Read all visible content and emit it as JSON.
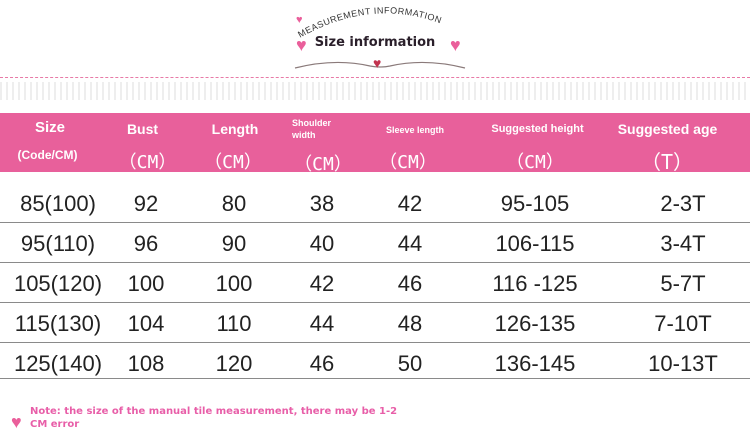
{
  "header": {
    "arc_text": "MEASUREMENT INFORMATION",
    "title": "Size information"
  },
  "table": {
    "columns": [
      {
        "label": "Size",
        "unit": "(Code/CM)"
      },
      {
        "label": "Bust",
        "unit": "（CM）"
      },
      {
        "label": "Length",
        "unit": "（CM）"
      },
      {
        "label": "Shoulder width",
        "unit": "（CM）"
      },
      {
        "label": "Sleeve length",
        "unit": "（CM）"
      },
      {
        "label": "Suggested height",
        "unit": "（CM）"
      },
      {
        "label": "Suggested age",
        "unit": "（T）"
      }
    ],
    "rows": [
      [
        "85(100)",
        "92",
        "80",
        "38",
        "42",
        "95-105",
        "2-3T"
      ],
      [
        "95(110)",
        "96",
        "90",
        "40",
        "44",
        "106-115",
        "3-4T"
      ],
      [
        "105(120)",
        "100",
        "100",
        "42",
        "46",
        "116 -125",
        "5-7T"
      ],
      [
        "115(130)",
        "104",
        "110",
        "44",
        "48",
        "126-135",
        "7-10T"
      ],
      [
        "125(140)",
        "108",
        "120",
        "46",
        "50",
        "136-145",
        "10-13T"
      ]
    ]
  },
  "note": "Note: the size of the manual tile measurement, there may be 1-2 CM error",
  "colors": {
    "accent": "#e8609b",
    "note": "#e85ea8"
  }
}
